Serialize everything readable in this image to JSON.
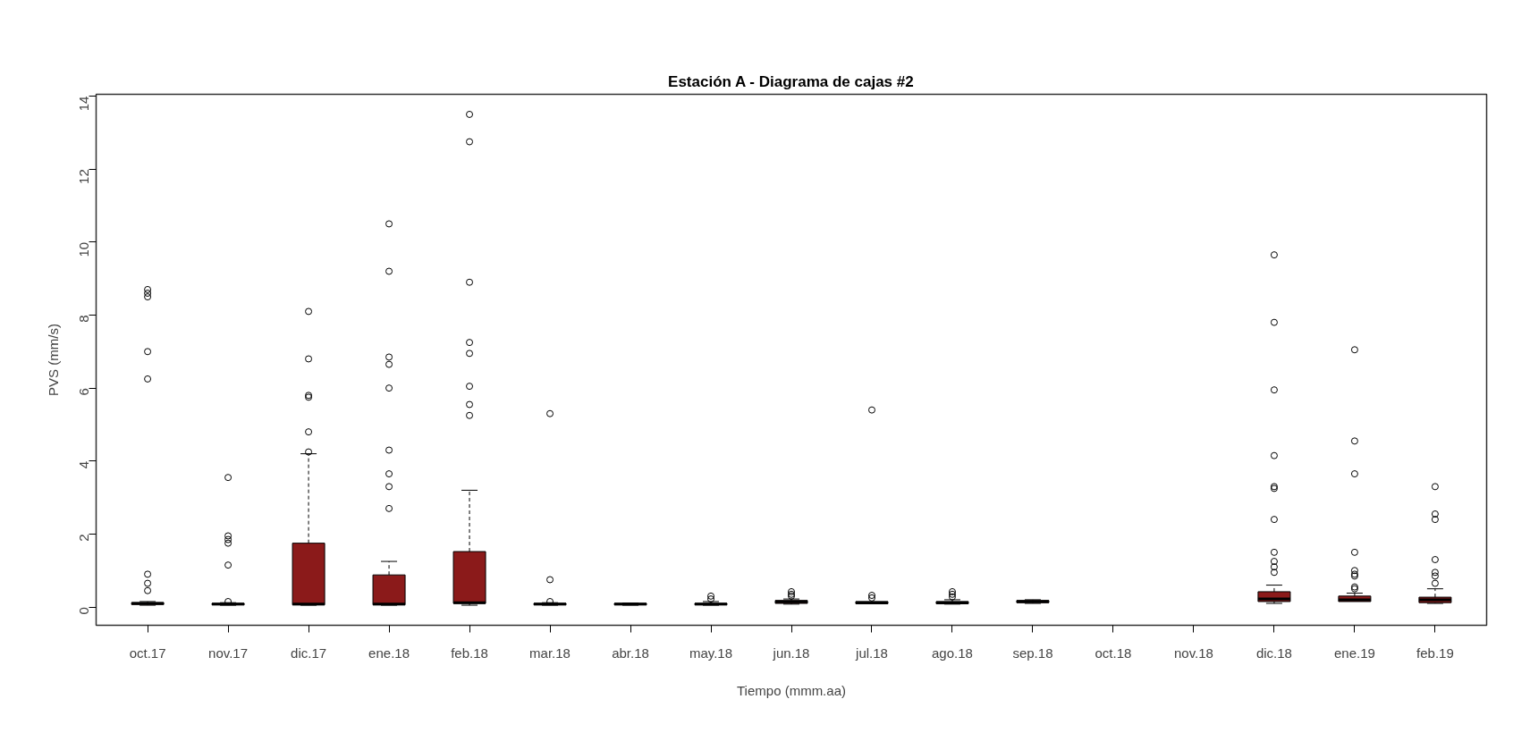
{
  "chart_data": {
    "type": "box",
    "title": "Estación A - Diagrama de cajas #2",
    "xlabel": "Tiempo (mmm.aa)",
    "ylabel": "PVS (mm/s)",
    "color": "#8b1a1a",
    "categories": [
      "oct.17",
      "nov.17",
      "dic.17",
      "ene.18",
      "feb.18",
      "mar.18",
      "abr.18",
      "may.18",
      "jun.18",
      "jul.18",
      "ago.18",
      "sep.18",
      "oct.18",
      "nov.18",
      "dic.18",
      "ene.19",
      "feb.19"
    ],
    "boxes": [
      {
        "low": 0.05,
        "q1": 0.07,
        "median": 0.1,
        "q3": 0.12,
        "high": 0.15,
        "outliers": [
          8.7,
          8.6,
          8.5,
          7.0,
          6.25,
          0.9,
          0.65,
          0.45
        ]
      },
      {
        "low": 0.05,
        "q1": 0.06,
        "median": 0.08,
        "q3": 0.1,
        "high": 0.12,
        "outliers": [
          3.55,
          1.95,
          1.85,
          1.75,
          1.15,
          0.15
        ]
      },
      {
        "low": 0.05,
        "q1": 0.06,
        "median": 0.08,
        "q3": 1.75,
        "high": 4.2,
        "outliers": [
          8.1,
          6.8,
          5.8,
          5.75,
          4.8,
          4.25
        ]
      },
      {
        "low": 0.05,
        "q1": 0.06,
        "median": 0.08,
        "q3": 0.88,
        "high": 1.25,
        "outliers": [
          10.5,
          9.2,
          6.85,
          6.65,
          6.0,
          4.3,
          3.65,
          3.3,
          2.7
        ]
      },
      {
        "low": 0.05,
        "q1": 0.1,
        "median": 0.12,
        "q3": 1.52,
        "high": 3.2,
        "outliers": [
          13.5,
          12.75,
          8.9,
          7.25,
          6.95,
          6.05,
          5.55,
          5.25
        ]
      },
      {
        "low": 0.05,
        "q1": 0.06,
        "median": 0.08,
        "q3": 0.1,
        "high": 0.12,
        "outliers": [
          5.3,
          0.75,
          0.15
        ]
      },
      {
        "low": 0.05,
        "q1": 0.06,
        "median": 0.08,
        "q3": 0.1,
        "high": 0.11
      },
      {
        "low": 0.05,
        "q1": 0.06,
        "median": 0.08,
        "q3": 0.1,
        "high": 0.15,
        "outliers": [
          0.3,
          0.22
        ]
      },
      {
        "low": 0.08,
        "q1": 0.1,
        "median": 0.14,
        "q3": 0.18,
        "high": 0.22,
        "outliers": [
          0.42,
          0.35,
          0.3
        ]
      },
      {
        "low": 0.09,
        "q1": 0.09,
        "median": 0.12,
        "q3": 0.15,
        "high": 0.15,
        "outliers": [
          5.4,
          0.32,
          0.25
        ]
      },
      {
        "low": 0.08,
        "q1": 0.09,
        "median": 0.12,
        "q3": 0.15,
        "high": 0.2,
        "outliers": [
          0.42,
          0.35,
          0.28
        ]
      },
      {
        "low": 0.1,
        "q1": 0.12,
        "median": 0.15,
        "q3": 0.18,
        "high": 0.2
      },
      null,
      null,
      {
        "low": 0.1,
        "q1": 0.15,
        "median": 0.22,
        "q3": 0.42,
        "high": 0.6,
        "outliers": [
          9.65,
          7.8,
          5.95,
          4.15,
          3.3,
          3.25,
          2.4,
          1.5,
          1.25,
          1.1,
          0.95
        ]
      },
      {
        "low": 0.15,
        "q1": 0.15,
        "median": 0.2,
        "q3": 0.3,
        "high": 0.38,
        "outliers": [
          7.05,
          4.55,
          3.65,
          1.5,
          1.0,
          0.9,
          0.85,
          0.55,
          0.5
        ]
      },
      {
        "low": 0.1,
        "q1": 0.12,
        "median": 0.2,
        "q3": 0.27,
        "high": 0.5,
        "outliers": [
          3.3,
          2.55,
          2.4,
          1.3,
          0.95,
          0.85,
          0.65
        ]
      }
    ],
    "ylim": [
      -0.5,
      14.05
    ],
    "yticks": [
      0,
      2,
      4,
      6,
      8,
      10,
      12,
      14
    ]
  }
}
